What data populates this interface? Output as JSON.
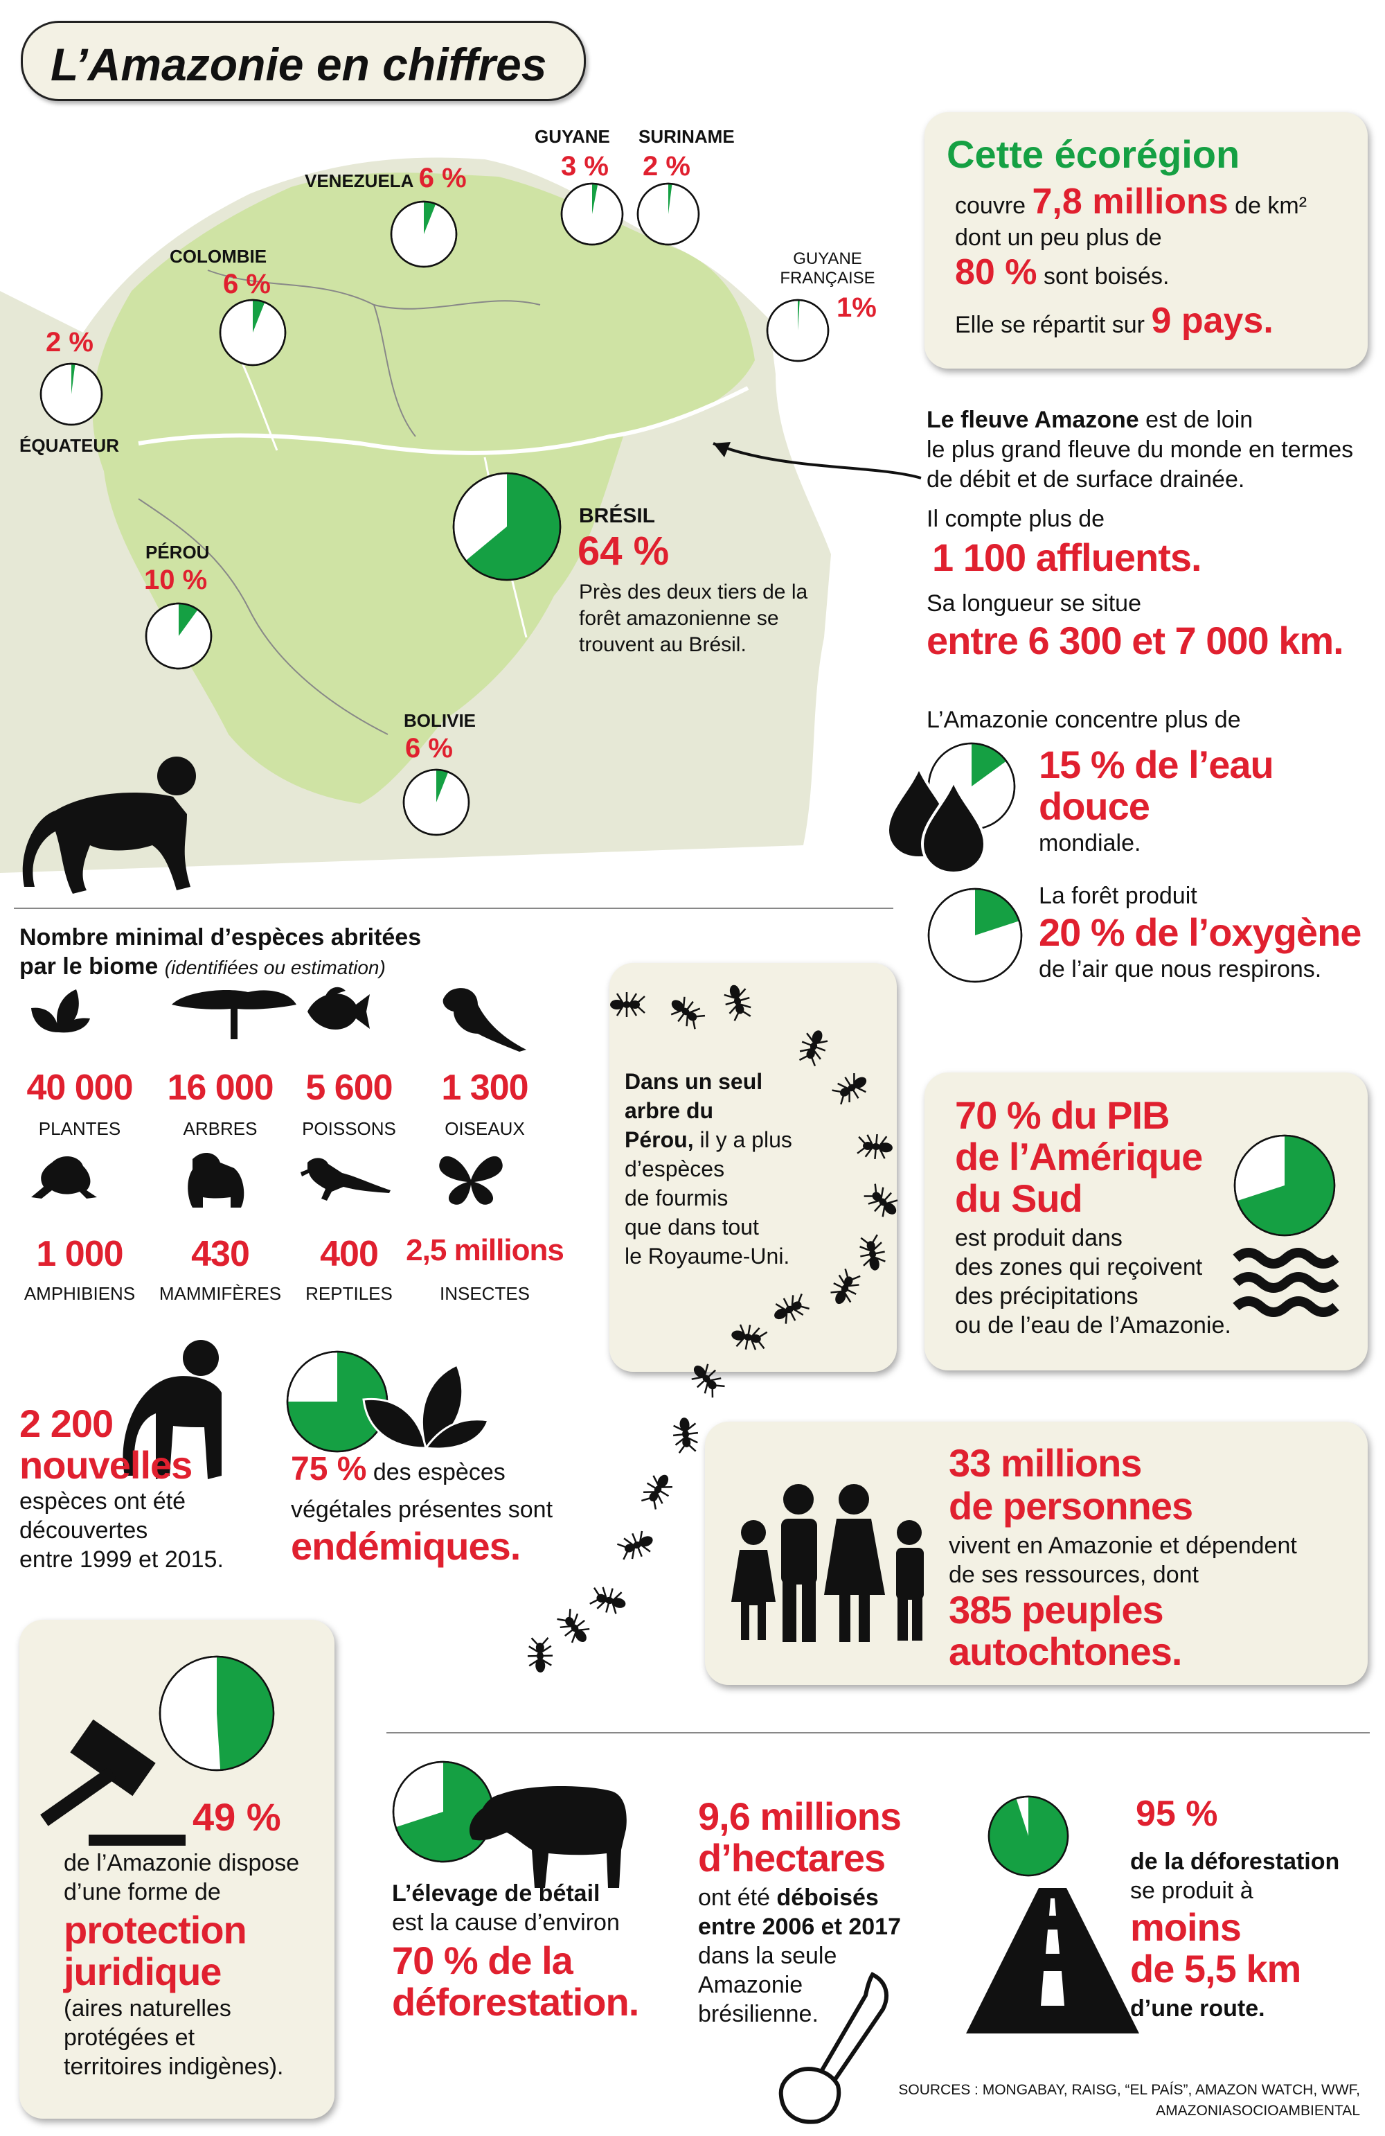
{
  "title": "L’Amazonie en chiffres",
  "colors": {
    "red": "#e0202f",
    "green": "#15a043",
    "panel": "#f3f1e4",
    "map_green": "#cfe3a4",
    "map_land": "#e6e8d6"
  },
  "map": {
    "countries": [
      {
        "name": "VENEZUELA",
        "pct": "6 %",
        "share": 0.06
      },
      {
        "name": "GUYANE",
        "pct": "3 %",
        "share": 0.03
      },
      {
        "name": "SURINAME",
        "pct": "2 %",
        "share": 0.02
      },
      {
        "name": "COLOMBIE",
        "pct": "6 %",
        "share": 0.06
      },
      {
        "name": "GUYANE FRANÇAISE",
        "pct": "1%",
        "share": 0.01
      },
      {
        "name": "ÉQUATEUR",
        "pct": "2 %",
        "share": 0.02
      },
      {
        "name": "PÉROU",
        "pct": "10 %",
        "share": 0.1
      },
      {
        "name": "BOLIVIE",
        "pct": "6 %",
        "share": 0.06
      },
      {
        "name": "BRÉSIL",
        "pct": "64 %",
        "share": 0.64
      }
    ],
    "bresil_note": "Près des deux tiers de la forêt amazonienne se trouvent au Brésil."
  },
  "ecoregion": {
    "heading": "Cette écorégion",
    "l1a": "couvre ",
    "l1b": "7,8 millions",
    "l1c": " de km²",
    "l2": "dont un peu plus de",
    "l3a": "80 %",
    "l3b": " sont boisés.",
    "l4a": "Elle se répartit sur ",
    "l4b": "9 pays."
  },
  "fleuve": {
    "bold": "Le fleuve Amazone",
    "rest1": " est de loin",
    "rest2": "le plus grand fleuve du monde en termes",
    "rest3": "de débit et de surface drainée.",
    "l4": "Il compte plus de",
    "l5": "1 100 affluents.",
    "l6": "Sa longueur se situe",
    "l7": "entre 6 300 et 7 000 km."
  },
  "eau": {
    "intro": "L’Amazonie concentre plus de",
    "big1": "15 % de l’eau",
    "big2": "douce",
    "tail": "mondiale.",
    "share": 0.15
  },
  "oxygene": {
    "intro": "La forêt produit",
    "big": "20 % de l’oxygène",
    "tail": "de l’air que nous respirons.",
    "share": 0.2
  },
  "especes": {
    "title": "Nombre minimal d’espèces abritées",
    "title2": "par le biome",
    "subtitle": "(identifiées ou estimation)",
    "items": [
      {
        "value": "40 000",
        "label": "PLANTES",
        "icon": "leaves-icon"
      },
      {
        "value": "16 000",
        "label": "ARBRES",
        "icon": "tree-icon"
      },
      {
        "value": "5 600",
        "label": "POISSONS",
        "icon": "fish-icon"
      },
      {
        "value": "1 300",
        "label": "OISEAUX",
        "icon": "parrot-icon"
      },
      {
        "value": "1 000",
        "label": "AMPHIBIENS",
        "icon": "frog-icon"
      },
      {
        "value": "430",
        "label": "MAMMIFÈRES",
        "icon": "jaguar-icon"
      },
      {
        "value": "400",
        "label": "REPTILES",
        "icon": "lizard-icon"
      },
      {
        "value": "2,5 millions",
        "label": "INSECTES",
        "icon": "butterfly-icon"
      }
    ]
  },
  "fourmis": {
    "l1": "Dans un seul",
    "l2": "arbre du",
    "l3a": "Pérou,",
    "l3b": " il y a plus",
    "l4": "d’espèces",
    "l5": "de fourmis",
    "l6": "que dans tout",
    "l7": "le Royaume-Uni."
  },
  "pib": {
    "l1": "70 % du PIB",
    "l2": "de l’Amérique",
    "l3": "du Sud",
    "l4": "est produit dans",
    "l5": "des zones qui reçoivent",
    "l6": "des précipitations",
    "l7": "ou de l’eau de l’Amazonie.",
    "share": 0.7
  },
  "nouvelles": {
    "num": "2 200",
    "big": "nouvelles",
    "l1": "espèces ont été",
    "l2": "découvertes",
    "l3": "entre 1999 et 2015."
  },
  "endemiques": {
    "pct": "75 %",
    "l1": " des espèces",
    "l2": "végétales présentes sont",
    "big": "endémiques.",
    "share": 0.75
  },
  "personnes": {
    "l1": "33 millions",
    "l2": "de personnes",
    "l3": "vivent en Amazonie et dépendent",
    "l4": "de ses ressources, dont",
    "l5": "385 peuples",
    "l6": "autochtones."
  },
  "protection": {
    "pct": "49 %",
    "l1": "de l’Amazonie dispose",
    "l2": "d’une forme de",
    "big1": "protection",
    "big2": "juridique",
    "l3": "(aires naturelles",
    "l4": "protégées et",
    "l5": "territoires indigènes).",
    "share": 0.49
  },
  "elevage": {
    "l1": "L’élevage de bétail",
    "l2": "est la cause d’environ",
    "big1": "70 % de la",
    "big2": "déforestation.",
    "share": 0.7
  },
  "hectares": {
    "big1": "9,6 millions",
    "big2": "d’hectares",
    "l1": "ont été ",
    "l1b": "déboisés",
    "l2": "entre 2006 et 2017",
    "l3": "dans la seule",
    "l4": "Amazonie",
    "l5": "brésilienne."
  },
  "route": {
    "pct": "95 %",
    "l1": "de la déforestation",
    "l2": "se produit à",
    "big1": "moins",
    "big2": "de 5,5 km",
    "l3": "d’une route.",
    "share": 0.95
  },
  "sources": {
    "l1": "SOURCES : MONGABAY, RAISG, “EL PAÍS”, AMAZON WATCH, WWF,",
    "l2": "AMAZONIASOCIOAMBIENTAL"
  }
}
